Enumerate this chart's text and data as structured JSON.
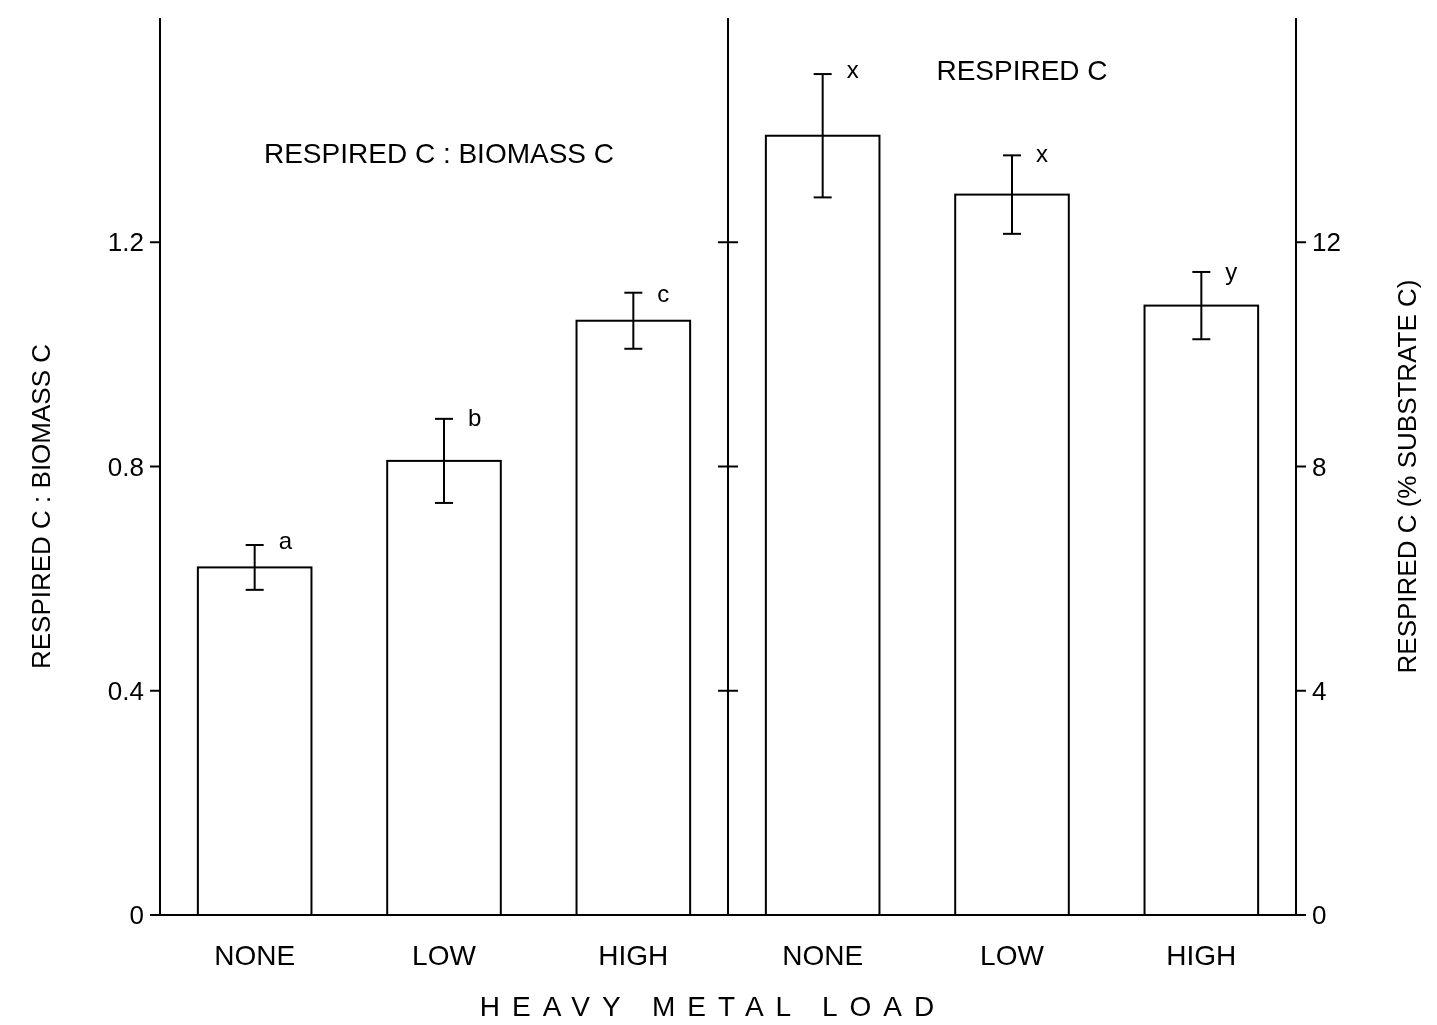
{
  "chart_data": [
    {
      "type": "bar",
      "title": "RESPIRED C : BIOMASS C",
      "xlabel": "HEAVY METAL LOAD",
      "ylabel": "RESPIRED C : BIOMASS C",
      "categories": [
        "NONE",
        "LOW",
        "HIGH"
      ],
      "values": [
        0.62,
        0.81,
        1.06
      ],
      "errors": [
        0.04,
        0.075,
        0.05
      ],
      "color": "#ffffff",
      "ylim": [
        0,
        1.6
      ],
      "yticks": [
        0,
        0.4,
        0.8,
        1.2
      ],
      "annotations": [
        {
          "text": "a",
          "x": "NONE",
          "y": 0.66
        },
        {
          "text": "b",
          "x": "LOW",
          "y": 0.88
        },
        {
          "text": "c",
          "x": "HIGH",
          "y": 1.1
        }
      ]
    },
    {
      "type": "bar",
      "title": "RESPIRED C",
      "ylabel": "RESPIRED C (% SUBSTRATE C)",
      "categories": [
        "NONE",
        "LOW",
        "HIGH"
      ],
      "values": [
        13.9,
        12.85,
        10.87
      ],
      "errors": [
        1.1,
        0.7,
        0.6
      ],
      "color": "#ffffff",
      "ylim": [
        0,
        16
      ],
      "yticks": [
        0,
        4,
        8,
        12
      ],
      "annotations": [
        {
          "text": "x",
          "x": "NONE",
          "y": 15.0
        },
        {
          "text": "x",
          "x": "LOW",
          "y": 13.5
        },
        {
          "text": "y",
          "x": "HIGH",
          "y": 11.4
        }
      ]
    }
  ]
}
